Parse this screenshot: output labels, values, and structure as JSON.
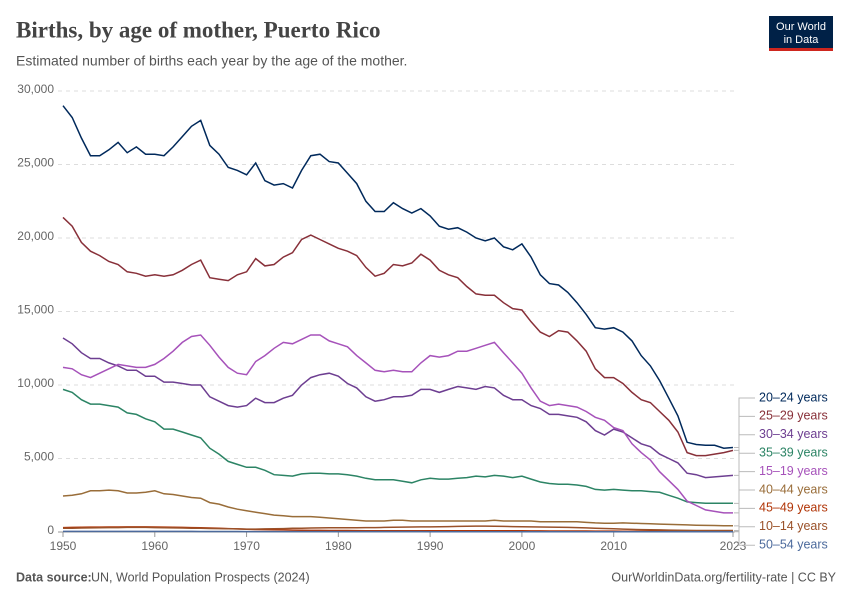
{
  "chart_data": {
    "type": "line",
    "title": "Births, by age of mother, Puerto Rico",
    "subtitle": "Estimated number of births each year by the age of the mother.",
    "x": [
      1950,
      1951,
      1952,
      1953,
      1954,
      1955,
      1956,
      1957,
      1958,
      1959,
      1960,
      1961,
      1962,
      1963,
      1964,
      1965,
      1966,
      1967,
      1968,
      1969,
      1970,
      1971,
      1972,
      1973,
      1974,
      1975,
      1976,
      1977,
      1978,
      1979,
      1980,
      1981,
      1982,
      1983,
      1984,
      1985,
      1986,
      1987,
      1988,
      1989,
      1990,
      1991,
      1992,
      1993,
      1994,
      1995,
      1996,
      1997,
      1998,
      1999,
      2000,
      2001,
      2002,
      2003,
      2004,
      2005,
      2006,
      2007,
      2008,
      2009,
      2010,
      2011,
      2012,
      2013,
      2014,
      2015,
      2016,
      2017,
      2018,
      2019,
      2020,
      2021,
      2022,
      2023
    ],
    "xlim": [
      1950,
      2023
    ],
    "xticks": [
      1950,
      1960,
      1970,
      1980,
      1990,
      2000,
      2010,
      2023
    ],
    "ylim": [
      0,
      30000
    ],
    "yticks": [
      0,
      {
        "value": 5000,
        "label": "5,000"
      },
      {
        "value": 10000,
        "label": "10,000"
      },
      {
        "value": 15000,
        "label": "15,000"
      },
      {
        "value": 20000,
        "label": "20,000"
      },
      {
        "value": 25000,
        "label": "25,000"
      },
      {
        "value": 30000,
        "label": "30,000"
      }
    ],
    "grid": true,
    "legend": "right",
    "series": [
      {
        "name": "20–24 years",
        "color": "#00295b",
        "values": [
          29000,
          28200,
          26800,
          25600,
          25600,
          26000,
          26500,
          25800,
          26200,
          25700,
          25700,
          25600,
          26200,
          26900,
          27600,
          28000,
          26300,
          25700,
          24800,
          24600,
          24300,
          25100,
          23900,
          23600,
          23700,
          23400,
          24600,
          25600,
          25700,
          25200,
          25100,
          24400,
          23700,
          22500,
          21800,
          21800,
          22400,
          22000,
          21700,
          22000,
          21500,
          20800,
          20600,
          20700,
          20400,
          20000,
          19800,
          20000,
          19400,
          19200,
          19600,
          18700,
          17500,
          16900,
          16800,
          16300,
          15600,
          14800,
          13900,
          13800,
          13900,
          13600,
          13000,
          12000,
          11300,
          10300,
          9100,
          7900,
          6100,
          5950,
          5900,
          5900,
          5700,
          5750
        ]
      },
      {
        "name": "25–29 years",
        "color": "#883039",
        "values": [
          21400,
          20800,
          19700,
          19100,
          18800,
          18400,
          18200,
          17700,
          17600,
          17400,
          17500,
          17400,
          17500,
          17800,
          18200,
          18500,
          17300,
          17200,
          17100,
          17500,
          17700,
          18600,
          18100,
          18200,
          18700,
          19000,
          19900,
          20200,
          19900,
          19600,
          19300,
          19100,
          18800,
          18000,
          17400,
          17600,
          18200,
          18100,
          18300,
          18900,
          18500,
          17800,
          17500,
          17300,
          16700,
          16200,
          16100,
          16100,
          15600,
          15200,
          15100,
          14300,
          13600,
          13300,
          13700,
          13600,
          13000,
          12300,
          11100,
          10500,
          10500,
          10100,
          9500,
          9000,
          8800,
          8200,
          7600,
          6800,
          5400,
          5200,
          5200,
          5300,
          5400,
          5550
        ]
      },
      {
        "name": "30–34 years",
        "color": "#6d3e91",
        "values": [
          13200,
          12800,
          12200,
          11800,
          11800,
          11500,
          11300,
          11000,
          11000,
          10600,
          10600,
          10200,
          10200,
          10100,
          10000,
          10000,
          9200,
          8900,
          8600,
          8500,
          8600,
          9100,
          8800,
          8800,
          9100,
          9300,
          10000,
          10500,
          10700,
          10800,
          10600,
          10100,
          9800,
          9200,
          8900,
          9000,
          9200,
          9200,
          9300,
          9700,
          9700,
          9500,
          9700,
          9900,
          9800,
          9700,
          9900,
          9800,
          9300,
          9000,
          9000,
          8600,
          8400,
          8000,
          8000,
          7900,
          7800,
          7500,
          6900,
          6600,
          7000,
          6800,
          6400,
          6000,
          5800,
          5300,
          5000,
          4700,
          4000,
          3900,
          3700,
          3750,
          3800,
          3850
        ]
      },
      {
        "name": "35–39 years",
        "color": "#2c8465",
        "values": [
          9700,
          9500,
          9000,
          8700,
          8700,
          8600,
          8500,
          8100,
          8000,
          7700,
          7500,
          7000,
          7000,
          6800,
          6600,
          6400,
          5700,
          5300,
          4800,
          4600,
          4400,
          4400,
          4200,
          3900,
          3850,
          3800,
          3950,
          4000,
          4000,
          3950,
          3950,
          3900,
          3800,
          3650,
          3550,
          3550,
          3550,
          3450,
          3350,
          3550,
          3650,
          3600,
          3600,
          3650,
          3700,
          3800,
          3750,
          3850,
          3800,
          3700,
          3800,
          3600,
          3400,
          3300,
          3250,
          3250,
          3200,
          3100,
          2900,
          2850,
          2900,
          2850,
          2800,
          2800,
          2750,
          2700,
          2500,
          2300,
          2050,
          2000,
          1950,
          1950,
          1950,
          1950
        ]
      },
      {
        "name": "15–19 years",
        "color": "#a652ba",
        "values": [
          11200,
          11100,
          10700,
          10500,
          10800,
          11100,
          11400,
          11300,
          11200,
          11200,
          11400,
          11800,
          12300,
          12900,
          13300,
          13400,
          12700,
          11900,
          11200,
          10800,
          10700,
          11600,
          12000,
          12500,
          12900,
          12800,
          13100,
          13400,
          13400,
          13000,
          12800,
          12600,
          12000,
          11500,
          11000,
          10900,
          11000,
          10900,
          10900,
          11500,
          12000,
          11900,
          12000,
          12300,
          12300,
          12500,
          12700,
          12900,
          12200,
          11500,
          10800,
          9800,
          8900,
          8600,
          8700,
          8600,
          8500,
          8200,
          7800,
          7600,
          7100,
          6900,
          6000,
          5400,
          4900,
          4100,
          3500,
          2900,
          2100,
          1800,
          1500,
          1400,
          1300,
          1300
        ]
      },
      {
        "name": "40–44 years",
        "color": "#996d39",
        "values": [
          2450,
          2500,
          2600,
          2800,
          2800,
          2850,
          2800,
          2650,
          2650,
          2700,
          2800,
          2600,
          2550,
          2450,
          2350,
          2300,
          2000,
          1900,
          1700,
          1550,
          1450,
          1350,
          1250,
          1150,
          1100,
          1050,
          1050,
          1050,
          1000,
          950,
          900,
          850,
          800,
          750,
          750,
          750,
          800,
          800,
          750,
          750,
          750,
          750,
          750,
          750,
          750,
          750,
          750,
          800,
          750,
          750,
          750,
          750,
          700,
          700,
          700,
          700,
          700,
          650,
          620,
          600,
          600,
          620,
          600,
          580,
          560,
          540,
          520,
          500,
          480,
          460,
          450,
          440,
          430,
          420
        ]
      },
      {
        "name": "45–49 years",
        "color": "#b13507",
        "values": [
          300,
          310,
          320,
          330,
          330,
          340,
          340,
          350,
          350,
          350,
          340,
          330,
          320,
          310,
          300,
          290,
          270,
          250,
          230,
          210,
          190,
          170,
          160,
          150,
          140,
          130,
          120,
          110,
          110,
          100,
          100,
          100,
          95,
          90,
          90,
          85,
          85,
          85,
          80,
          80,
          80,
          80,
          80,
          80,
          80,
          80,
          80,
          80,
          80,
          80,
          80,
          75,
          75,
          70,
          70,
          70,
          65,
          65,
          60,
          60,
          60,
          55,
          55,
          50,
          50,
          50,
          45,
          45,
          40,
          40,
          40,
          40,
          40,
          40
        ]
      },
      {
        "name": "10–14 years",
        "color": "#9a5129",
        "values": [
          250,
          260,
          270,
          280,
          290,
          300,
          300,
          310,
          310,
          310,
          300,
          290,
          280,
          270,
          260,
          250,
          240,
          230,
          220,
          210,
          200,
          200,
          210,
          220,
          230,
          250,
          260,
          270,
          280,
          290,
          290,
          290,
          290,
          300,
          300,
          310,
          320,
          330,
          340,
          350,
          350,
          360,
          370,
          380,
          390,
          400,
          400,
          390,
          380,
          370,
          360,
          350,
          340,
          330,
          320,
          310,
          300,
          280,
          260,
          240,
          220,
          200,
          180,
          160,
          150,
          140,
          130,
          120,
          110,
          100,
          100,
          100,
          100,
          100
        ]
      },
      {
        "name": "50–54 years",
        "color": "#4c6a9c",
        "values": [
          40,
          40,
          40,
          40,
          40,
          40,
          40,
          40,
          40,
          40,
          40,
          40,
          40,
          40,
          40,
          35,
          35,
          35,
          35,
          35,
          30,
          30,
          30,
          30,
          30,
          30,
          30,
          30,
          30,
          30,
          25,
          25,
          25,
          25,
          25,
          25,
          25,
          25,
          25,
          25,
          20,
          20,
          20,
          20,
          20,
          20,
          20,
          20,
          20,
          20,
          20,
          20,
          20,
          20,
          20,
          20,
          20,
          20,
          20,
          20,
          15,
          15,
          15,
          15,
          15,
          15,
          15,
          15,
          15,
          15,
          15,
          15,
          15,
          15
        ]
      }
    ]
  },
  "logo": {
    "line1": "Our World",
    "line2": "in Data"
  },
  "footer": {
    "source_label": "Data source:",
    "source": "UN, World Population Prospects (2024)",
    "url": "OurWorldinData.org/fertility-rate | CC BY"
  }
}
